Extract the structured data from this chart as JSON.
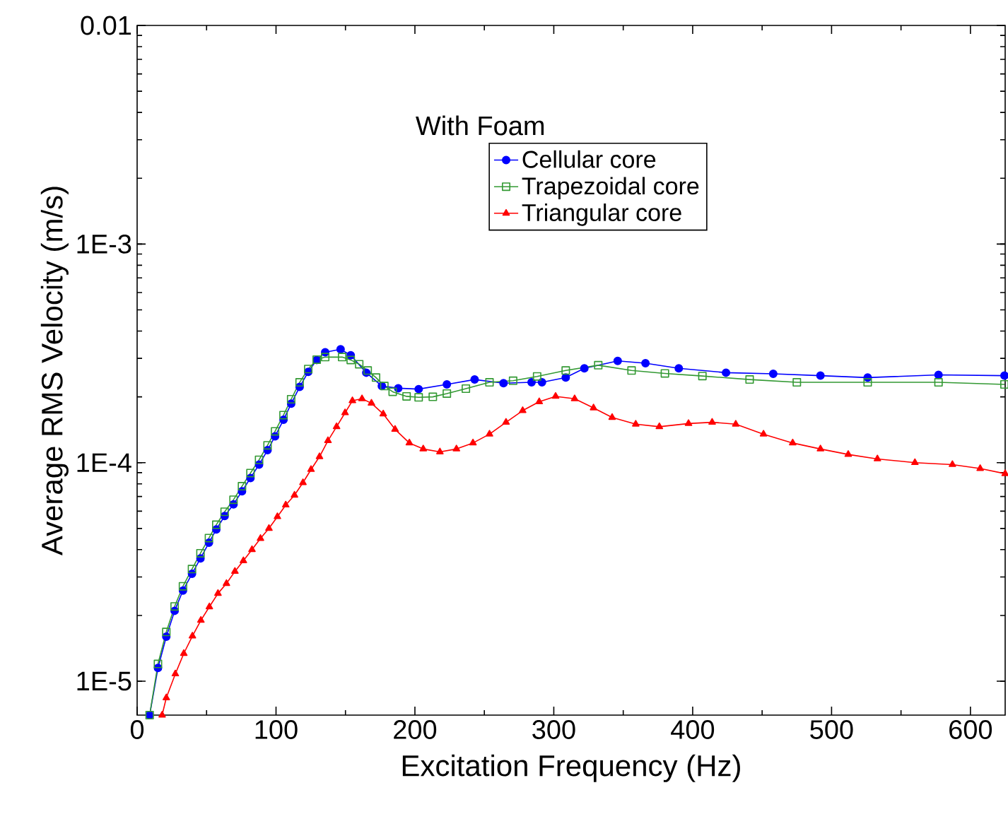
{
  "chart_data": {
    "type": "line",
    "xlabel": "Excitation Frequency (Hz)",
    "ylabel": "Average RMS Velocity (m/s)",
    "annotations": [
      "With Foam"
    ],
    "log": "y",
    "xlim": [
      0,
      625
    ],
    "ylim": [
      7e-06,
      0.01
    ],
    "xticks": [
      0,
      100,
      200,
      300,
      400,
      500,
      600
    ],
    "yticks": [
      {
        "value": 1e-05,
        "label": "1E-5"
      },
      {
        "value": 0.0001,
        "label": "1E-4"
      },
      {
        "value": 0.001,
        "label": "1E-3"
      },
      {
        "value": 0.01,
        "label": "0.01"
      }
    ],
    "grid": false,
    "legend": "top right",
    "line_style": "solid",
    "series": [
      {
        "name": "Cellular core",
        "color": "#0000ff",
        "marker": "circle",
        "x": [
          9,
          15,
          21,
          27,
          33,
          39.5,
          45.6,
          51.7,
          57,
          63,
          69.4,
          75.5,
          81.6,
          87.8,
          93.9,
          99.3,
          105.4,
          110.9,
          117,
          123.2,
          129.3,
          135.4,
          146.5,
          153.8,
          165,
          176.2,
          188,
          202.7,
          223,
          243,
          263.8,
          284,
          291.5,
          308.6,
          322,
          346,
          366,
          390,
          424,
          458,
          492,
          526,
          577,
          624.5
        ],
        "values": [
          7e-06,
          1.15e-05,
          1.6e-05,
          2.1e-05,
          2.6e-05,
          3.1e-05,
          3.65e-05,
          4.3e-05,
          4.95e-05,
          5.7e-05,
          6.45e-05,
          7.4e-05,
          8.5e-05,
          9.8e-05,
          0.000114,
          0.000132,
          0.000157,
          0.000186,
          0.000222,
          0.00026,
          0.000295,
          0.00032,
          0.00033,
          0.00031,
          0.000258,
          0.000224,
          0.000219,
          0.000217,
          0.000228,
          0.00024,
          0.000231,
          0.000233,
          0.000233,
          0.000245,
          0.00027,
          0.000292,
          0.000285,
          0.00027,
          0.000258,
          0.000255,
          0.00025,
          0.000245,
          0.000252,
          0.00025
        ]
      },
      {
        "name": "Trapezoidal core",
        "color": "#339933",
        "marker": "square",
        "x": [
          9,
          15,
          21,
          27,
          33,
          39.5,
          45.6,
          51.7,
          57,
          63,
          69.4,
          75.5,
          81.6,
          87.8,
          93.9,
          99.3,
          105.4,
          110.9,
          117,
          123.2,
          129.3,
          135.4,
          147.6,
          153.8,
          159.9,
          166,
          172,
          178,
          184,
          194,
          202.7,
          212.9,
          223,
          236.7,
          253.7,
          270.7,
          288,
          308.6,
          332,
          356,
          380,
          407,
          441,
          475,
          526,
          577,
          624.5
        ],
        "values": [
          7e-06,
          1.2e-05,
          1.68e-05,
          2.2e-05,
          2.72e-05,
          3.26e-05,
          3.85e-05,
          4.52e-05,
          5.2e-05,
          5.96e-05,
          6.77e-05,
          7.8e-05,
          8.96e-05,
          0.000103,
          0.00012,
          0.000139,
          0.000165,
          0.000195,
          0.000233,
          0.000268,
          0.000296,
          0.000304,
          0.000304,
          0.000295,
          0.000282,
          0.000264,
          0.000245,
          0.000224,
          0.000211,
          0.000201,
          0.000199,
          0.0002,
          0.000207,
          0.000218,
          0.000233,
          0.000237,
          0.000248,
          0.000264,
          0.000279,
          0.000264,
          0.000256,
          0.000249,
          0.00024,
          0.000233,
          0.000233,
          0.000233,
          0.000228
        ]
      },
      {
        "name": "Triangular core",
        "color": "#ff0000",
        "marker": "triangle",
        "x": [
          18,
          21,
          27.5,
          33.6,
          39.8,
          45.9,
          52,
          58.2,
          64.3,
          70.4,
          76.5,
          82.7,
          88.8,
          94.9,
          101,
          107,
          113.3,
          119.4,
          125.2,
          131.3,
          137.4,
          143.6,
          149.7,
          155,
          161.9,
          168.7,
          177.2,
          185.7,
          196,
          206,
          218,
          229.9,
          241.8,
          253.7,
          265.6,
          277.6,
          289.5,
          301.3,
          315,
          328.6,
          342,
          359,
          376,
          397,
          414,
          431,
          451,
          472,
          492,
          512,
          533,
          560,
          587,
          607,
          625
        ],
        "values": [
          7e-06,
          8.4e-06,
          1.08e-05,
          1.34e-05,
          1.61e-05,
          1.9e-05,
          2.19e-05,
          2.52e-05,
          2.8e-05,
          3.18e-05,
          3.56e-05,
          4e-05,
          4.5e-05,
          5e-05,
          5.66e-05,
          6.4e-05,
          7.1e-05,
          8.1e-05,
          9.3e-05,
          0.0001065,
          0.000126,
          0.000146,
          0.000169,
          0.000192,
          0.000196,
          0.000187,
          0.000167,
          0.000142,
          0.000123,
          0.0001155,
          0.000112,
          0.0001155,
          0.000123,
          0.000135,
          0.000153,
          0.000173,
          0.00019,
          0.000201,
          0.000196,
          0.000178,
          0.000161,
          0.00015,
          0.000146,
          0.000151,
          0.000153,
          0.00015,
          0.000135,
          0.000123,
          0.0001155,
          0.000109,
          0.000104,
          0.0001,
          9.8e-05,
          9.4e-05,
          8.9e-05
        ]
      }
    ]
  }
}
